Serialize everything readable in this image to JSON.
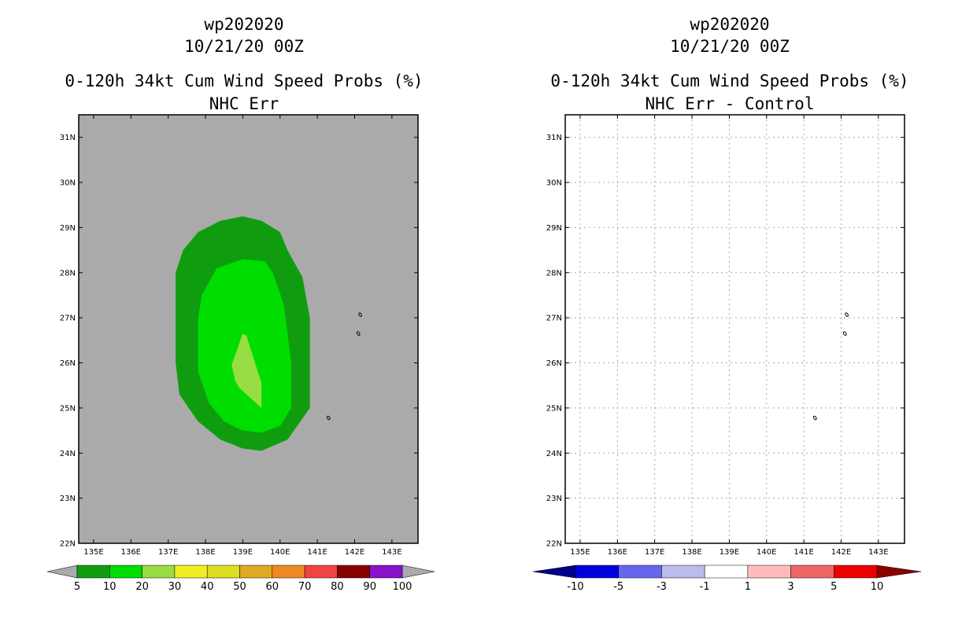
{
  "left": {
    "title_lines": [
      "wp202020",
      "10/21/20 00Z",
      "0-120h 34kt Cum Wind Speed Probs (%)",
      "NHC Err"
    ],
    "background_color": "#aaaaaa"
  },
  "right": {
    "title_lines": [
      "wp202020",
      "10/21/20 00Z",
      "0-120h 34kt Cum Wind Speed Probs (%)",
      "NHC Err - Control"
    ],
    "background_color": "#ffffff"
  },
  "chart_data": [
    {
      "type": "contour-map",
      "name": "probability",
      "title": "0-120h 34kt Cum Wind Speed Probs (%)",
      "subtitle": "NHC Err",
      "storm": "wp202020",
      "valid": "10/21/20 00Z",
      "xlim": [
        134.6,
        143.7
      ],
      "ylim": [
        22.0,
        31.5
      ],
      "x_ticks": [
        135,
        136,
        137,
        138,
        139,
        140,
        141,
        142,
        143
      ],
      "x_tick_labels": [
        "135E",
        "136E",
        "137E",
        "138E",
        "139E",
        "140E",
        "141E",
        "142E",
        "143E"
      ],
      "y_ticks": [
        22,
        23,
        24,
        25,
        26,
        27,
        28,
        29,
        30,
        31
      ],
      "y_tick_labels": [
        "22N",
        "23N",
        "24N",
        "25N",
        "26N",
        "27N",
        "28N",
        "29N",
        "30N",
        "31N"
      ],
      "grid": false,
      "contours": [
        {
          "level": "5-10",
          "color": "#0f9d0f",
          "lon": [
            139.0,
            139.5,
            140.0,
            140.2,
            140.6,
            140.8,
            140.8,
            140.2,
            139.5,
            139.0,
            138.4,
            137.8,
            137.3,
            137.2,
            137.2,
            137.4,
            137.8,
            138.4
          ],
          "lat": [
            29.25,
            29.15,
            28.9,
            28.5,
            27.9,
            27.0,
            25.0,
            24.3,
            24.05,
            24.1,
            24.3,
            24.7,
            25.3,
            26.0,
            28.0,
            28.5,
            28.9,
            29.15
          ]
        },
        {
          "level": "10-20",
          "color": "#00dd00",
          "lon": [
            139.0,
            139.6,
            139.8,
            140.1,
            140.3,
            140.3,
            140.0,
            139.5,
            139.0,
            138.5,
            138.1,
            137.8,
            137.8,
            137.9,
            138.3
          ],
          "lat": [
            28.3,
            28.25,
            28.0,
            27.3,
            26.0,
            25.0,
            24.6,
            24.45,
            24.5,
            24.7,
            25.1,
            25.8,
            27.0,
            27.5,
            28.1
          ]
        },
        {
          "level": "20-30",
          "color": "#99dd44",
          "lon": [
            139.0,
            139.1,
            139.5,
            139.5,
            138.9,
            138.8,
            138.7
          ],
          "lat": [
            26.65,
            26.6,
            25.55,
            25.0,
            25.45,
            25.6,
            25.95
          ]
        }
      ],
      "islands": [
        {
          "lon": 142.15,
          "lat": 27.07
        },
        {
          "lon": 142.1,
          "lat": 26.65
        },
        {
          "lon": 141.3,
          "lat": 24.78
        }
      ],
      "colorbar": {
        "ticks": [
          "5",
          "10",
          "20",
          "30",
          "40",
          "50",
          "60",
          "70",
          "80",
          "90",
          "100"
        ],
        "colors": [
          "#0f9d0f",
          "#00dd00",
          "#99dd44",
          "#eeee22",
          "#dddd22",
          "#ddaa22",
          "#ee8822",
          "#ee4444",
          "#880000",
          "#8811cc"
        ],
        "under_color": "#aaaaaa",
        "over_color": "#aaaaaa"
      }
    },
    {
      "type": "contour-map",
      "name": "difference",
      "title": "0-120h 34kt Cum Wind Speed Probs (%)",
      "subtitle": "NHC Err - Control",
      "storm": "wp202020",
      "valid": "10/21/20 00Z",
      "xlim": [
        134.6,
        143.7
      ],
      "ylim": [
        22.0,
        31.5
      ],
      "x_ticks": [
        135,
        136,
        137,
        138,
        139,
        140,
        141,
        142,
        143
      ],
      "x_tick_labels": [
        "135E",
        "136E",
        "137E",
        "138E",
        "139E",
        "140E",
        "141E",
        "142E",
        "143E"
      ],
      "y_ticks": [
        22,
        23,
        24,
        25,
        26,
        27,
        28,
        29,
        30,
        31
      ],
      "y_tick_labels": [
        "22N",
        "23N",
        "24N",
        "25N",
        "26N",
        "27N",
        "28N",
        "29N",
        "30N",
        "31N"
      ],
      "grid": true,
      "contours": [],
      "islands": [
        {
          "lon": 142.15,
          "lat": 27.07
        },
        {
          "lon": 142.1,
          "lat": 26.65
        },
        {
          "lon": 141.3,
          "lat": 24.78
        }
      ],
      "colorbar": {
        "ticks": [
          "-10",
          "-5",
          "-3",
          "-1",
          "1",
          "3",
          "5",
          "10"
        ],
        "colors": [
          "#0000dd",
          "#6666ee",
          "#bbbbee",
          "#ffffff",
          "#ffbbbb",
          "#ee6666",
          "#ee0000"
        ],
        "under_color": "#00008b",
        "over_color": "#8b0000"
      }
    }
  ]
}
